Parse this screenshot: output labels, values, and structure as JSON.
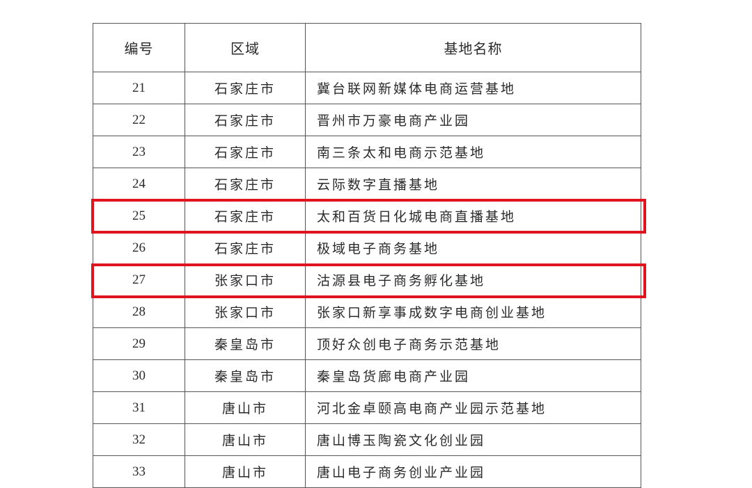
{
  "table": {
    "headers": [
      "编号",
      "区域",
      "基地名称"
    ],
    "rows": [
      {
        "no": "21",
        "region": "石家庄市",
        "name": "冀台联网新媒体电商运营基地",
        "highlighted": false
      },
      {
        "no": "22",
        "region": "石家庄市",
        "name": "晋州市万豪电商产业园",
        "highlighted": false
      },
      {
        "no": "23",
        "region": "石家庄市",
        "name": "南三条太和电商示范基地",
        "highlighted": true
      },
      {
        "no": "24",
        "region": "石家庄市",
        "name": "云际数字直播基地",
        "highlighted": false
      },
      {
        "no": "25",
        "region": "石家庄市",
        "name": "太和百货日化城电商直播基地",
        "highlighted": true
      },
      {
        "no": "26",
        "region": "石家庄市",
        "name": "极域电子商务基地",
        "highlighted": false
      },
      {
        "no": "27",
        "region": "张家口市",
        "name": "沽源县电子商务孵化基地",
        "highlighted": false
      },
      {
        "no": "28",
        "region": "张家口市",
        "name": "张家口新享事成数字电商创业基地",
        "highlighted": false
      },
      {
        "no": "29",
        "region": "秦皇岛市",
        "name": "顶好众创电子商务示范基地",
        "highlighted": false
      },
      {
        "no": "30",
        "region": "秦皇岛市",
        "name": "秦皇岛货廊电商产业园",
        "highlighted": false
      },
      {
        "no": "31",
        "region": "唐山市",
        "name": "河北金卓颐高电商产业园示范基地",
        "highlighted": false
      },
      {
        "no": "32",
        "region": "唐山市",
        "name": "唐山博玉陶瓷文化创业园",
        "highlighted": false
      },
      {
        "no": "33",
        "region": "唐山市",
        "name": "唐山电子商务创业产业园",
        "highlighted": false
      }
    ]
  },
  "highlight_color": "#e0141e"
}
